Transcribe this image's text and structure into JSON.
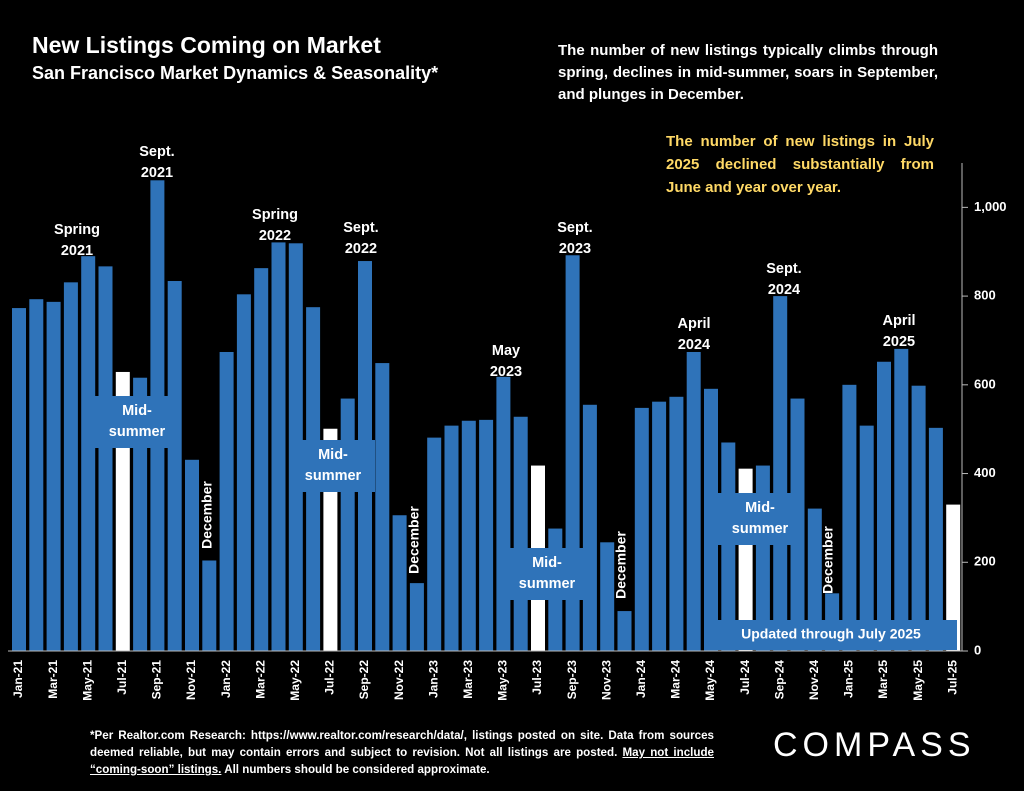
{
  "chart_data": {
    "type": "bar",
    "title": "New Listings Coming on Market",
    "subtitle": "San Francisco Market Dynamics & Seasonality*",
    "note": "The number of new listings typically climbs through spring, declines in mid-summer, soars in September, and plunges in December.",
    "highlight_note": "The number of new listings in July 2025 declined substantially from June and year over year.",
    "categories": [
      "Jan-21",
      null,
      "Mar-21",
      null,
      "May-21",
      null,
      "Jul-21",
      null,
      "Sep-21",
      null,
      "Nov-21",
      null,
      "Jan-22",
      null,
      "Mar-22",
      null,
      "May-22",
      null,
      "Jul-22",
      null,
      "Sep-22",
      null,
      "Nov-22",
      null,
      "Jan-23",
      null,
      "Mar-23",
      null,
      "May-23",
      null,
      "Jul-23",
      null,
      "Sep-23",
      null,
      "Nov-23",
      null,
      "Jan-24",
      null,
      "Mar-24",
      null,
      "May-24",
      null,
      "Jul-24",
      null,
      "Sep-24",
      null,
      "Nov-24",
      null,
      "Jan-25",
      null,
      "Mar-25",
      null,
      "May-25",
      null,
      "Jul-25"
    ],
    "values": [
      773,
      793,
      787,
      831,
      890,
      867,
      629,
      616,
      1061,
      834,
      431,
      204,
      674,
      804,
      863,
      921,
      919,
      775,
      501,
      569,
      879,
      649,
      306,
      153,
      481,
      508,
      519,
      521,
      618,
      528,
      418,
      276,
      892,
      555,
      245,
      90,
      548,
      562,
      573,
      674,
      591,
      470,
      411,
      418,
      800,
      569,
      321,
      130,
      600,
      508,
      652,
      681,
      598,
      503,
      330
    ],
    "color": "#2f73b9",
    "highlight_color": "#ffffff",
    "highlight": [
      6,
      18,
      30,
      42,
      54
    ],
    "ylim": [
      0,
      1100
    ],
    "yticks": [
      0,
      200,
      400,
      600,
      800,
      {
        "value": 1000,
        "label": "1,000"
      }
    ],
    "annotations": [
      {
        "lines": [
          "Spring",
          "2021"
        ]
      },
      {
        "lines": [
          "Sept.",
          "2021"
        ]
      },
      {
        "lines": [
          "Spring",
          "2022"
        ]
      },
      {
        "lines": [
          "Sept.",
          "2022"
        ]
      },
      {
        "lines": [
          "May",
          "2023"
        ]
      },
      {
        "lines": [
          "Sept.",
          "2023"
        ]
      },
      {
        "lines": [
          "April",
          "2024"
        ]
      },
      {
        "lines": [
          "Sept.",
          "2024"
        ]
      },
      {
        "lines": [
          "April",
          "2025"
        ]
      },
      {
        "lines": [
          "Mid-",
          "summer"
        ]
      },
      {
        "lines": [
          "Mid-",
          "summer"
        ]
      },
      {
        "lines": [
          "Mid-",
          "summer"
        ]
      },
      {
        "lines": [
          "Mid-",
          "summer"
        ]
      },
      {
        "lines": [
          "December"
        ]
      },
      {
        "lines": [
          "December"
        ]
      },
      {
        "lines": [
          "December"
        ]
      },
      {
        "lines": [
          "December"
        ]
      },
      {
        "lines": [
          "Updated through July 2025"
        ]
      }
    ],
    "footnote": [
      "*Per Realtor.com Research:  https://www.realtor.com/research/data/, listings posted on site. Data from sources deemed reliable, but may contain errors and subject to revision. Not all listings are posted. ",
      "May not include “coming-soon” listings.",
      " All numbers should be considered approximate."
    ],
    "logo": "COMPASS"
  }
}
